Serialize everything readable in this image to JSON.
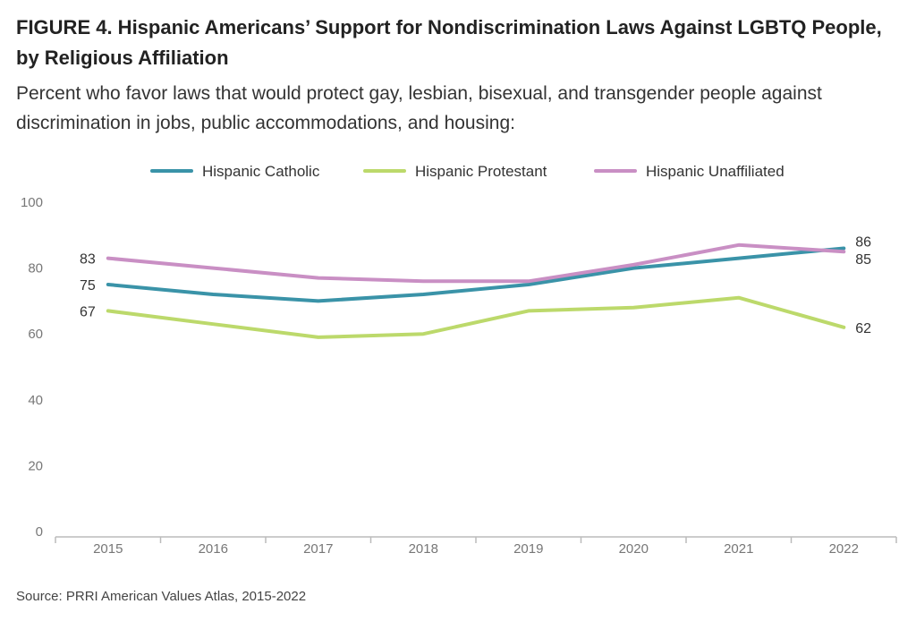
{
  "header": {
    "title": "FIGURE 4.  Hispanic Americans’ Support for Nondiscrimination Laws Against LGBTQ People, by Religious Affiliation",
    "subtitle": "Percent who favor laws that would protect gay, lesbian, bisexual, and transgender people against discrimination in jobs, public accommodations, and housing:"
  },
  "footer": {
    "source": "Source: PRRI American Values Atlas, 2015-2022"
  },
  "chart_data": {
    "type": "line",
    "title": "FIGURE 4.  Hispanic Americans’ Support for Nondiscrimination Laws Against LGBTQ People, by Religious Affiliation",
    "subtitle": "Percent who favor laws that would protect gay, lesbian, bisexual, and transgender people against discrimination in jobs, public accommodations, and housing:",
    "xlabel": "",
    "ylabel": "",
    "x": [
      "2015",
      "2016",
      "2017",
      "2018",
      "2019",
      "2020",
      "2021",
      "2022"
    ],
    "ylim": [
      0,
      100
    ],
    "yticks": [
      0,
      20,
      40,
      60,
      80,
      100
    ],
    "grid": false,
    "legend": "top-center",
    "series": [
      {
        "name": "Hispanic Catholic",
        "color": "#3a93a8",
        "values": [
          75,
          72,
          70,
          72,
          75,
          80,
          83,
          86
        ],
        "labels": [
          "75",
          "",
          "",
          "",
          "",
          "",
          "",
          "86"
        ]
      },
      {
        "name": "Hispanic Protestant",
        "color": "#bcd96b",
        "values": [
          67,
          63,
          59,
          60,
          67,
          68,
          71,
          62
        ],
        "labels": [
          "67",
          "",
          "",
          "",
          "",
          "",
          "",
          "62"
        ]
      },
      {
        "name": "Hispanic Unaffiliated",
        "color": "#c98fc4",
        "values": [
          83,
          80,
          77,
          76,
          76,
          81,
          87,
          85
        ],
        "labels": [
          "83",
          "",
          "",
          "",
          "",
          "",
          "",
          "85"
        ]
      }
    ]
  }
}
